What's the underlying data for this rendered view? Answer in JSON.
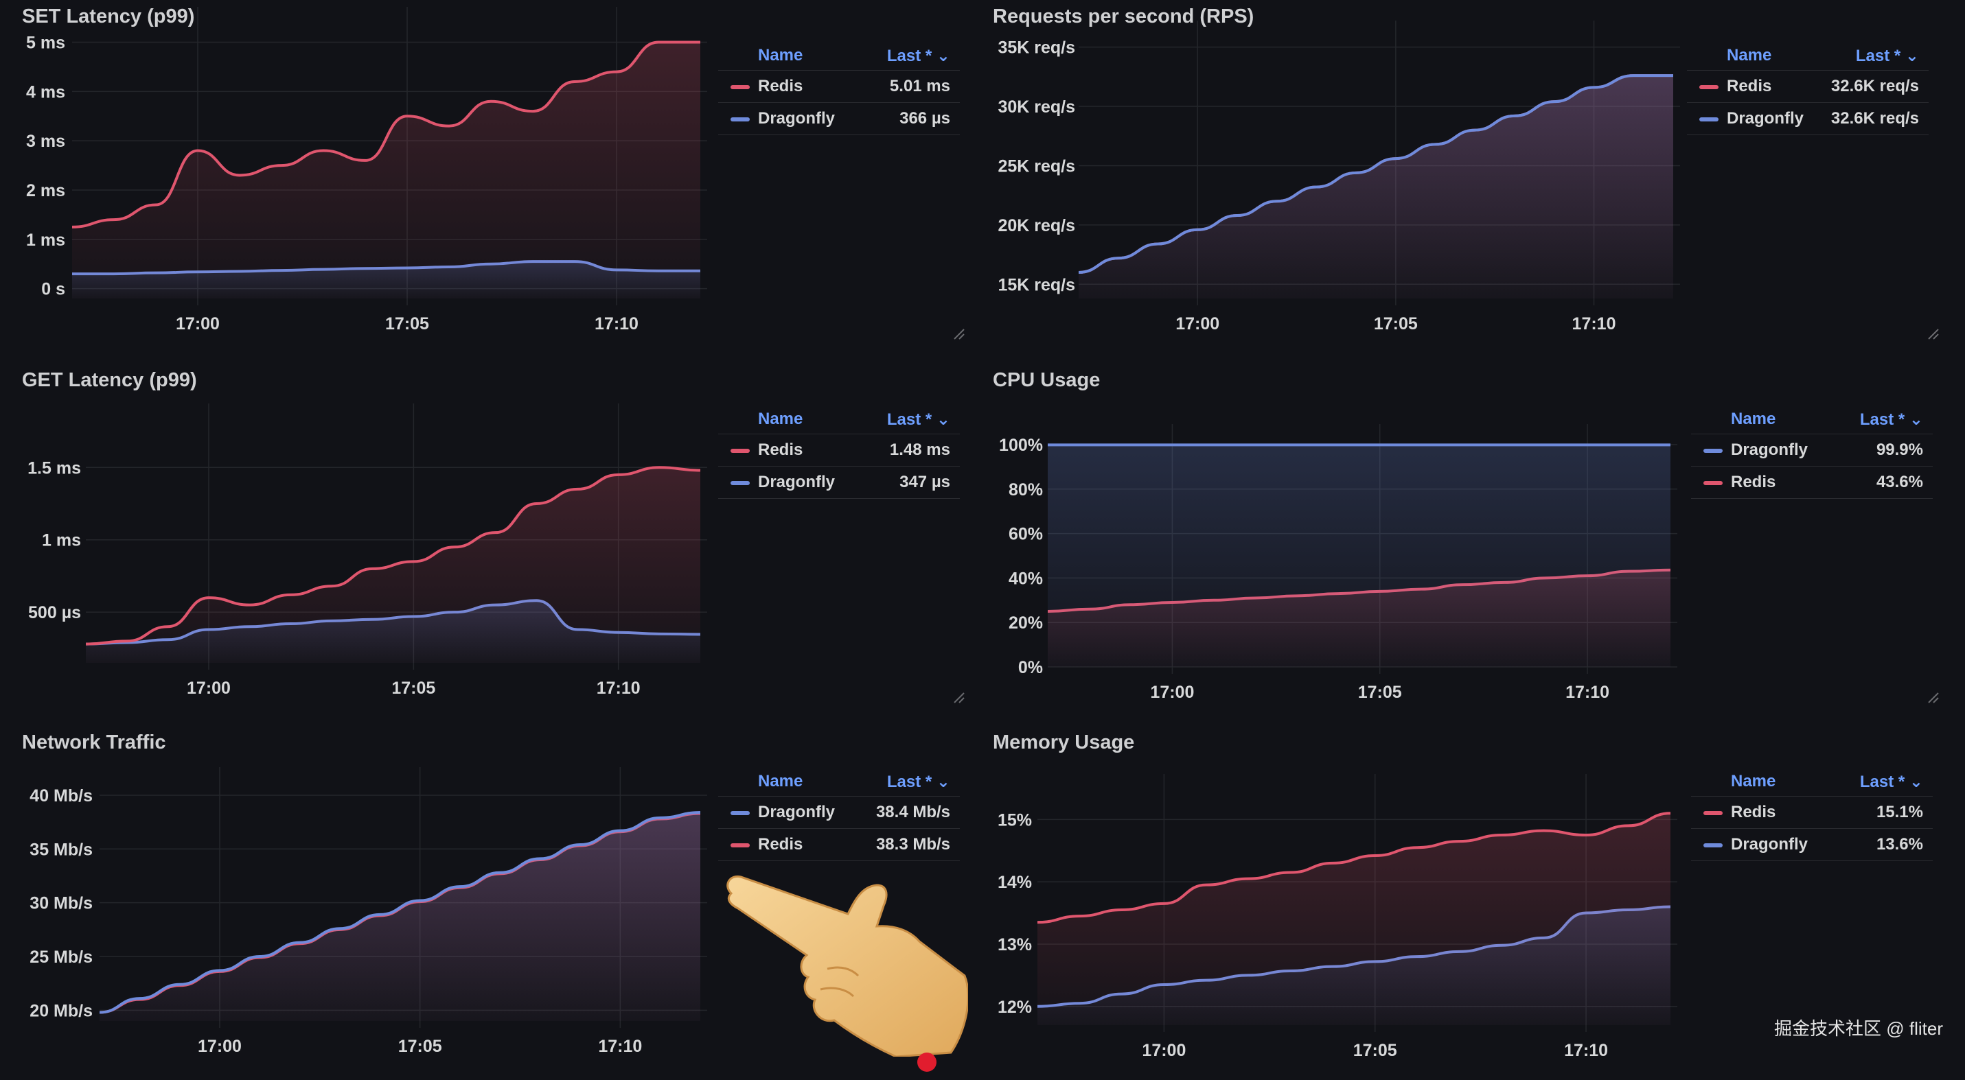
{
  "colors": {
    "redis": "#e0566e",
    "dragonfly": "#6f8bdc",
    "legend_head": "#6e9fff"
  },
  "legend_headers": {
    "name": "Name",
    "last": "Last *"
  },
  "panels": [
    {
      "id": "set_latency",
      "title": "SET Latency (p99)",
      "legend": [
        {
          "name": "Redis",
          "value": "5.01 ms",
          "color": "redis"
        },
        {
          "name": "Dragonfly",
          "value": "366 µs",
          "color": "dragonfly"
        }
      ]
    },
    {
      "id": "rps",
      "title": "Requests per second (RPS)",
      "legend": [
        {
          "name": "Redis",
          "value": "32.6K req/s",
          "color": "redis"
        },
        {
          "name": "Dragonfly",
          "value": "32.6K req/s",
          "color": "dragonfly"
        }
      ]
    },
    {
      "id": "get_latency",
      "title": "GET Latency (p99)",
      "legend": [
        {
          "name": "Redis",
          "value": "1.48 ms",
          "color": "redis"
        },
        {
          "name": "Dragonfly",
          "value": "347 µs",
          "color": "dragonfly"
        }
      ]
    },
    {
      "id": "cpu",
      "title": "CPU Usage",
      "legend": [
        {
          "name": "Dragonfly",
          "value": "99.9%",
          "color": "dragonfly"
        },
        {
          "name": "Redis",
          "value": "43.6%",
          "color": "redis"
        }
      ]
    },
    {
      "id": "network",
      "title": "Network Traffic",
      "legend": [
        {
          "name": "Dragonfly",
          "value": "38.4 Mb/s",
          "color": "dragonfly"
        },
        {
          "name": "Redis",
          "value": "38.3 Mb/s",
          "color": "redis"
        }
      ]
    },
    {
      "id": "memory",
      "title": "Memory Usage",
      "legend": [
        {
          "name": "Redis",
          "value": "15.1%",
          "color": "redis"
        },
        {
          "name": "Dragonfly",
          "value": "13.6%",
          "color": "dragonfly"
        }
      ]
    }
  ],
  "chart_data": [
    {
      "type": "line",
      "title": "SET Latency (p99)",
      "y_unit": "ms",
      "x": [
        "16:57",
        "16:58",
        "16:59",
        "17:00",
        "17:01",
        "17:02",
        "17:03",
        "17:04",
        "17:05",
        "17:06",
        "17:07",
        "17:08",
        "17:09",
        "17:10",
        "17:11",
        "17:12"
      ],
      "xticks": [
        "17:00",
        "17:05",
        "17:10"
      ],
      "yticks": [
        {
          "v": 0,
          "label": "0 s"
        },
        {
          "v": 1,
          "label": "1 ms"
        },
        {
          "v": 2,
          "label": "2 ms"
        },
        {
          "v": 3,
          "label": "3 ms"
        },
        {
          "v": 4,
          "label": "4 ms"
        },
        {
          "v": 5,
          "label": "5 ms"
        }
      ],
      "ylim": [
        -0.2,
        5.3
      ],
      "series": [
        {
          "name": "Redis",
          "color": "redis",
          "values": [
            1.25,
            1.4,
            1.7,
            2.8,
            2.3,
            2.5,
            2.8,
            2.6,
            3.5,
            3.3,
            3.8,
            3.6,
            4.2,
            4.4,
            5.0,
            5.0
          ]
        },
        {
          "name": "Dragonfly",
          "color": "dragonfly",
          "values": [
            0.3,
            0.3,
            0.32,
            0.34,
            0.35,
            0.37,
            0.39,
            0.41,
            0.42,
            0.44,
            0.5,
            0.55,
            0.55,
            0.38,
            0.36,
            0.36
          ]
        }
      ]
    },
    {
      "type": "line",
      "title": "Requests per second (RPS)",
      "y_unit": "K req/s",
      "x": [
        "16:57",
        "16:58",
        "16:59",
        "17:00",
        "17:01",
        "17:02",
        "17:03",
        "17:04",
        "17:05",
        "17:06",
        "17:07",
        "17:08",
        "17:09",
        "17:10",
        "17:11",
        "17:12"
      ],
      "xticks": [
        "17:00",
        "17:05",
        "17:10"
      ],
      "yticks": [
        {
          "v": 15,
          "label": "15K req/s"
        },
        {
          "v": 20,
          "label": "20K req/s"
        },
        {
          "v": 25,
          "label": "25K req/s"
        },
        {
          "v": 30,
          "label": "30K req/s"
        },
        {
          "v": 35,
          "label": "35K req/s"
        }
      ],
      "ylim": [
        13.8,
        35.5
      ],
      "series": [
        {
          "name": "Dragonfly",
          "color": "dragonfly",
          "values": [
            16.0,
            17.2,
            18.4,
            19.6,
            20.8,
            22.0,
            23.2,
            24.4,
            25.6,
            26.8,
            28.0,
            29.2,
            30.4,
            31.6,
            32.6,
            32.6
          ]
        },
        {
          "name": "Redis",
          "color": "redis",
          "values": [
            16.0,
            17.2,
            18.4,
            19.6,
            20.8,
            22.0,
            23.2,
            24.4,
            25.6,
            26.8,
            28.0,
            29.2,
            30.4,
            31.6,
            32.6,
            32.6
          ]
        }
      ]
    },
    {
      "type": "line",
      "title": "GET Latency (p99)",
      "y_unit": "ms",
      "x": [
        "16:57",
        "16:58",
        "16:59",
        "17:00",
        "17:01",
        "17:02",
        "17:03",
        "17:04",
        "17:05",
        "17:06",
        "17:07",
        "17:08",
        "17:09",
        "17:10",
        "17:11",
        "17:12"
      ],
      "xticks": [
        "17:00",
        "17:05",
        "17:10"
      ],
      "yticks": [
        {
          "v": 0.5,
          "label": "500 µs"
        },
        {
          "v": 1.0,
          "label": "1 ms"
        },
        {
          "v": 1.5,
          "label": "1.5 ms"
        }
      ],
      "ylim": [
        0.15,
        1.8
      ],
      "series": [
        {
          "name": "Redis",
          "color": "redis",
          "values": [
            0.28,
            0.3,
            0.4,
            0.6,
            0.55,
            0.62,
            0.68,
            0.8,
            0.85,
            0.95,
            1.05,
            1.25,
            1.35,
            1.45,
            1.5,
            1.48
          ]
        },
        {
          "name": "Dragonfly",
          "color": "dragonfly",
          "values": [
            0.28,
            0.29,
            0.31,
            0.38,
            0.4,
            0.42,
            0.44,
            0.45,
            0.47,
            0.5,
            0.55,
            0.58,
            0.38,
            0.36,
            0.35,
            0.347
          ]
        }
      ]
    },
    {
      "type": "line",
      "title": "CPU Usage",
      "y_unit": "%",
      "x": [
        "16:57",
        "16:58",
        "16:59",
        "17:00",
        "17:01",
        "17:02",
        "17:03",
        "17:04",
        "17:05",
        "17:06",
        "17:07",
        "17:08",
        "17:09",
        "17:10",
        "17:11",
        "17:12"
      ],
      "xticks": [
        "17:00",
        "17:05",
        "17:10"
      ],
      "yticks": [
        {
          "v": 0,
          "label": "0%"
        },
        {
          "v": 20,
          "label": "20%"
        },
        {
          "v": 40,
          "label": "40%"
        },
        {
          "v": 60,
          "label": "60%"
        },
        {
          "v": 80,
          "label": "80%"
        },
        {
          "v": 100,
          "label": "100%"
        }
      ],
      "ylim": [
        0,
        100
      ],
      "series": [
        {
          "name": "Dragonfly",
          "color": "dragonfly",
          "values": [
            99.9,
            99.9,
            99.9,
            99.9,
            99.9,
            99.9,
            99.9,
            99.9,
            99.9,
            99.9,
            99.9,
            99.9,
            99.9,
            99.9,
            99.9,
            99.9
          ]
        },
        {
          "name": "Redis",
          "color": "redis",
          "values": [
            25,
            26,
            28,
            29,
            30,
            31,
            32,
            33,
            34,
            35,
            37,
            38,
            40,
            41,
            43,
            43.6
          ]
        }
      ]
    },
    {
      "type": "line",
      "title": "Network Traffic",
      "y_unit": "Mb/s",
      "x": [
        "16:57",
        "16:58",
        "16:59",
        "17:00",
        "17:01",
        "17:02",
        "17:03",
        "17:04",
        "17:05",
        "17:06",
        "17:07",
        "17:08",
        "17:09",
        "17:10",
        "17:11",
        "17:12"
      ],
      "xticks": [
        "17:00",
        "17:05",
        "17:10"
      ],
      "yticks": [
        {
          "v": 20,
          "label": "20 Mb/s"
        },
        {
          "v": 25,
          "label": "25 Mb/s"
        },
        {
          "v": 30,
          "label": "30 Mb/s"
        },
        {
          "v": 35,
          "label": "35 Mb/s"
        },
        {
          "v": 40,
          "label": "40 Mb/s"
        }
      ],
      "ylim": [
        19.0,
        40.7
      ],
      "series": [
        {
          "name": "Dragonfly",
          "color": "dragonfly",
          "values": [
            19.8,
            21.1,
            22.4,
            23.7,
            25.0,
            26.3,
            27.6,
            28.9,
            30.2,
            31.5,
            32.8,
            34.1,
            35.4,
            36.7,
            37.9,
            38.4
          ]
        },
        {
          "name": "Redis",
          "color": "redis",
          "values": [
            19.8,
            21.0,
            22.3,
            23.6,
            24.9,
            26.2,
            27.5,
            28.8,
            30.1,
            31.4,
            32.7,
            34.0,
            35.3,
            36.6,
            37.8,
            38.3
          ]
        }
      ]
    },
    {
      "type": "line",
      "title": "Memory Usage",
      "y_unit": "%",
      "x": [
        "16:57",
        "16:58",
        "16:59",
        "17:00",
        "17:01",
        "17:02",
        "17:03",
        "17:04",
        "17:05",
        "17:06",
        "17:07",
        "17:08",
        "17:09",
        "17:10",
        "17:11",
        "17:12"
      ],
      "xticks": [
        "17:00",
        "17:05",
        "17:10"
      ],
      "yticks": [
        {
          "v": 12,
          "label": "12%"
        },
        {
          "v": 13,
          "label": "13%"
        },
        {
          "v": 14,
          "label": "14%"
        },
        {
          "v": 15,
          "label": "15%"
        }
      ],
      "ylim": [
        11.7,
        15.4
      ],
      "series": [
        {
          "name": "Redis",
          "color": "redis",
          "values": [
            13.35,
            13.45,
            13.55,
            13.65,
            13.95,
            14.05,
            14.15,
            14.3,
            14.42,
            14.55,
            14.65,
            14.75,
            14.82,
            14.75,
            14.9,
            15.1
          ]
        },
        {
          "name": "Dragonfly",
          "color": "dragonfly",
          "values": [
            12.0,
            12.05,
            12.2,
            12.35,
            12.42,
            12.5,
            12.57,
            12.64,
            12.72,
            12.8,
            12.88,
            12.98,
            13.1,
            13.5,
            13.55,
            13.6
          ]
        }
      ]
    }
  ],
  "watermark": "掘金技术社区 @ fliter"
}
